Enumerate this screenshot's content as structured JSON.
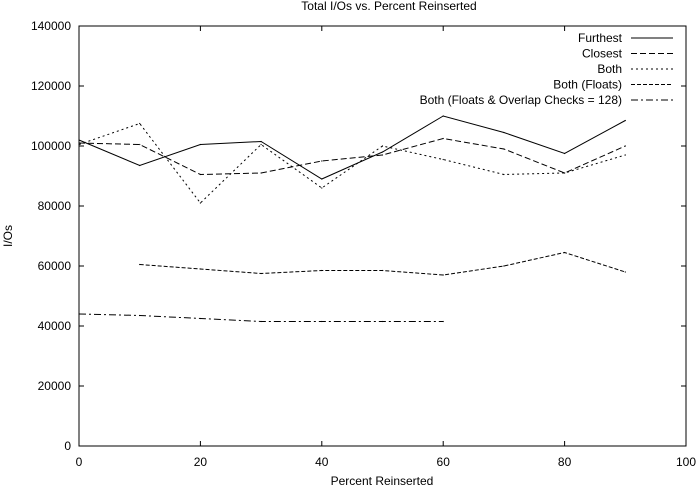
{
  "chart_data": {
    "type": "line",
    "title": "Total I/Os vs. Percent Reinserted",
    "xlabel": "Percent Reinserted",
    "ylabel": "I/Os",
    "xlim": [
      0,
      100
    ],
    "ylim": [
      0,
      140000
    ],
    "xticks": [
      0,
      20,
      40,
      60,
      80,
      100
    ],
    "yticks": [
      0,
      20000,
      40000,
      60000,
      80000,
      100000,
      120000,
      140000
    ],
    "grid": false,
    "legend_position": "top-right",
    "series": [
      {
        "name": "Furthest",
        "dash": "solid",
        "x": [
          0,
          10,
          20,
          30,
          40,
          50,
          60,
          70,
          80,
          90
        ],
        "y": [
          102000,
          93500,
          100500,
          101500,
          89000,
          98000,
          110000,
          104500,
          97500,
          108500
        ]
      },
      {
        "name": "Closest",
        "dash": "dashed",
        "x": [
          0,
          10,
          20,
          30,
          40,
          50,
          60,
          70,
          80,
          90
        ],
        "y": [
          101000,
          100500,
          90500,
          91000,
          95000,
          97000,
          102500,
          99000,
          91000,
          100000
        ]
      },
      {
        "name": "Both",
        "dash": "dotted",
        "x": [
          0,
          10,
          20,
          30,
          40,
          50,
          60,
          70,
          80,
          90
        ],
        "y": [
          100500,
          107500,
          81000,
          100500,
          86000,
          100000,
          95500,
          90500,
          91000,
          97000
        ]
      },
      {
        "name": "Both (Floats)",
        "dash": "fine-dashed",
        "x": [
          10,
          20,
          30,
          40,
          50,
          60,
          70,
          80,
          90
        ],
        "y": [
          60500,
          59000,
          57500,
          58500,
          58500,
          57000,
          60000,
          64500,
          58000
        ]
      },
      {
        "name": "Both (Floats & Overlap Checks = 128)",
        "dash": "dash-dot",
        "x": [
          0,
          10,
          20,
          30,
          40,
          50,
          60
        ],
        "y": [
          44000,
          43500,
          42500,
          41500,
          41500,
          41500,
          41500
        ]
      }
    ]
  }
}
